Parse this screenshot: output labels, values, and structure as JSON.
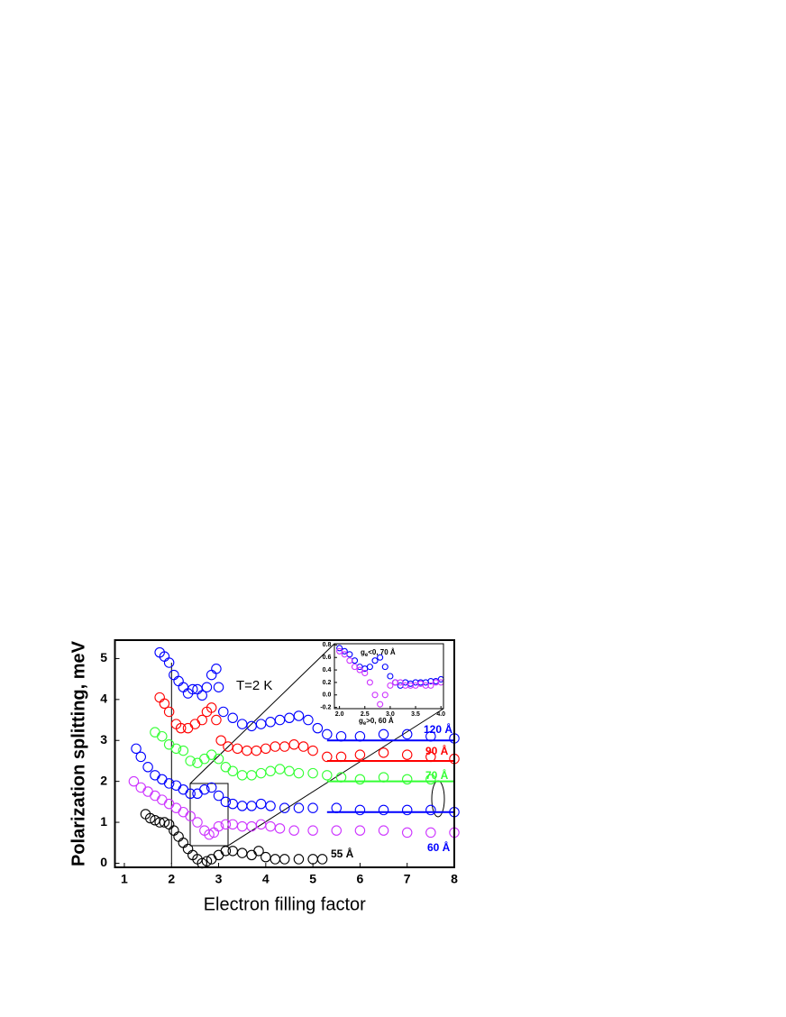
{
  "chart_data": [
    {
      "type": "scatter",
      "x_label": "Electron filling factor",
      "y_label": "Polarization splitting, meV",
      "xlim": [
        0.8,
        8
      ],
      "ylim": [
        -0.1,
        5.45
      ],
      "xticks": [
        1,
        2,
        3,
        4,
        5,
        6,
        7,
        8
      ],
      "yticks": [
        0,
        1,
        2,
        3,
        4,
        5
      ],
      "series": [
        {
          "color": "#0000ff",
          "x": [
            1.75,
            1.85,
            1.95,
            2.05,
            2.15,
            2.25,
            2.35,
            2.45,
            2.55,
            2.65,
            2.75,
            2.85,
            2.95,
            3.0,
            3.1,
            3.3,
            3.5,
            3.7,
            3.9,
            4.1,
            4.3,
            4.5,
            4.7,
            4.9,
            5.1,
            5.3,
            5.6,
            6.0,
            6.5,
            7.0,
            7.5,
            8.0
          ],
          "values": [
            5.15,
            5.05,
            4.9,
            4.6,
            4.45,
            4.3,
            4.15,
            4.25,
            4.25,
            4.1,
            4.3,
            4.6,
            4.75,
            4.3,
            3.7,
            3.55,
            3.4,
            3.35,
            3.4,
            3.45,
            3.5,
            3.55,
            3.6,
            3.5,
            3.3,
            3.15,
            3.1,
            3.1,
            3.15,
            3.15,
            3.1,
            3.05
          ]
        },
        {
          "color": "#ff0000",
          "x": [
            1.75,
            1.85,
            1.95,
            2.1,
            2.2,
            2.35,
            2.5,
            2.65,
            2.75,
            2.85,
            2.95,
            3.05,
            3.2,
            3.4,
            3.6,
            3.8,
            4.0,
            4.2,
            4.4,
            4.6,
            4.8,
            5.0,
            5.3,
            5.6,
            6.0,
            6.5,
            7.0,
            7.5,
            8.0
          ],
          "values": [
            4.05,
            3.9,
            3.7,
            3.4,
            3.3,
            3.3,
            3.4,
            3.5,
            3.7,
            3.8,
            3.5,
            3.0,
            2.85,
            2.8,
            2.75,
            2.75,
            2.8,
            2.85,
            2.85,
            2.9,
            2.85,
            2.75,
            2.6,
            2.6,
            2.65,
            2.7,
            2.65,
            2.6,
            2.55
          ]
        },
        {
          "color": "#33ff33",
          "x": [
            1.65,
            1.8,
            1.95,
            2.1,
            2.25,
            2.4,
            2.55,
            2.7,
            2.85,
            3.0,
            3.15,
            3.3,
            3.5,
            3.7,
            3.9,
            4.1,
            4.3,
            4.5,
            4.7,
            5.0,
            5.3,
            5.6,
            6.0,
            6.5,
            7.0,
            7.5
          ],
          "values": [
            3.2,
            3.1,
            2.9,
            2.8,
            2.75,
            2.5,
            2.45,
            2.55,
            2.65,
            2.55,
            2.35,
            2.25,
            2.15,
            2.15,
            2.2,
            2.25,
            2.3,
            2.25,
            2.2,
            2.2,
            2.15,
            2.1,
            2.05,
            2.1,
            2.05,
            2.05
          ]
        },
        {
          "color": "#0000ff",
          "x": [
            1.25,
            1.35,
            1.5,
            1.65,
            1.8,
            1.95,
            2.1,
            2.25,
            2.4,
            2.55,
            2.7,
            2.85,
            3.0,
            3.15,
            3.3,
            3.5,
            3.7,
            3.9,
            4.1,
            4.4,
            4.7,
            5.0,
            5.5,
            6.0,
            6.5,
            7.0,
            7.5,
            8.0
          ],
          "values": [
            2.8,
            2.6,
            2.35,
            2.15,
            2.05,
            1.95,
            1.9,
            1.8,
            1.7,
            1.7,
            1.8,
            1.85,
            1.65,
            1.5,
            1.45,
            1.4,
            1.4,
            1.45,
            1.4,
            1.35,
            1.35,
            1.35,
            1.35,
            1.3,
            1.3,
            1.3,
            1.3,
            1.25
          ]
        },
        {
          "color": "#cc33ff",
          "x": [
            1.2,
            1.35,
            1.5,
            1.65,
            1.8,
            1.95,
            2.1,
            2.25,
            2.4,
            2.55,
            2.7,
            2.8,
            2.9,
            3.0,
            3.15,
            3.3,
            3.5,
            3.7,
            3.9,
            4.1,
            4.3,
            4.6,
            5.0,
            5.5,
            6.0,
            6.5,
            7.0,
            7.5,
            8.0
          ],
          "values": [
            2.0,
            1.85,
            1.75,
            1.65,
            1.55,
            1.45,
            1.35,
            1.25,
            1.15,
            1.0,
            0.8,
            0.7,
            0.75,
            0.9,
            0.95,
            0.95,
            0.9,
            0.9,
            0.95,
            0.9,
            0.85,
            0.8,
            0.8,
            0.8,
            0.8,
            0.8,
            0.75,
            0.75,
            0.75
          ]
        },
        {
          "color": "#000000",
          "x": [
            1.45,
            1.55,
            1.65,
            1.75,
            1.85,
            1.95,
            2.05,
            2.15,
            2.25,
            2.35,
            2.45,
            2.55,
            2.65,
            2.75,
            2.85,
            3.0,
            3.15,
            3.3,
            3.5,
            3.7,
            3.85,
            4.0,
            4.2,
            4.4,
            4.7,
            5.0,
            5.2
          ],
          "values": [
            1.2,
            1.1,
            1.05,
            1.0,
            1.0,
            0.95,
            0.8,
            0.65,
            0.5,
            0.35,
            0.2,
            0.1,
            0.0,
            0.05,
            0.1,
            0.2,
            0.3,
            0.3,
            0.25,
            0.2,
            0.3,
            0.15,
            0.1,
            0.1,
            0.1,
            0.1,
            0.1
          ]
        }
      ],
      "reference_lines": [
        {
          "y": 3.0,
          "x": [
            5.3,
            8
          ],
          "color": "#0000ff"
        },
        {
          "y": 2.5,
          "x": [
            5.3,
            8
          ],
          "color": "#ff0000"
        },
        {
          "y": 2.0,
          "x": [
            5.3,
            8
          ],
          "color": "#33ff33"
        },
        {
          "y": 1.25,
          "x": [
            5.3,
            8
          ],
          "color": "#0000ff"
        }
      ],
      "annotations": [
        {
          "text": "T=2 K",
          "color": "#000000"
        },
        {
          "text": "120 Å",
          "color": "#0000ff"
        },
        {
          "text": "90 Å",
          "color": "#ff0000"
        },
        {
          "text": "70 Å",
          "color": "#33ff33"
        },
        {
          "text": "60 Å",
          "color": "#0000ff"
        },
        {
          "text": "55 Å",
          "color": "#000000"
        }
      ]
    },
    {
      "type": "scatter",
      "xlim": [
        1.9,
        4.05
      ],
      "ylim": [
        -0.22,
        0.82
      ],
      "xticks": [
        {
          "value": 2,
          "label": "2.0"
        },
        2.5,
        {
          "value": 3,
          "label": "3.0"
        },
        3.5,
        {
          "value": 4,
          "label": "4.0"
        }
      ],
      "yticks": [
        -0.2,
        {
          "value": 0,
          "label": "0.0"
        },
        0.2,
        0.4,
        0.6,
        0.8
      ],
      "series": [
        {
          "color": "#0000ff",
          "x": [
            2.0,
            2.1,
            2.2,
            2.3,
            2.4,
            2.5,
            2.6,
            2.7,
            2.8,
            2.9,
            3.0,
            3.1,
            3.2,
            3.3,
            3.4,
            3.5,
            3.6,
            3.7,
            3.8,
            3.9,
            4.0
          ],
          "values": [
            0.75,
            0.7,
            0.65,
            0.55,
            0.45,
            0.42,
            0.45,
            0.55,
            0.6,
            0.45,
            0.3,
            0.2,
            0.15,
            0.2,
            0.18,
            0.2,
            0.2,
            0.2,
            0.22,
            0.22,
            0.25
          ]
        },
        {
          "color": "#cc33ff",
          "x": [
            2.0,
            2.1,
            2.2,
            2.3,
            2.4,
            2.5,
            2.6,
            2.7,
            2.8,
            2.9,
            3.0,
            3.1,
            3.2,
            3.3,
            3.4,
            3.5,
            3.6,
            3.7,
            3.8,
            3.9,
            4.0
          ],
          "values": [
            0.7,
            0.65,
            0.55,
            0.45,
            0.4,
            0.35,
            0.2,
            0.0,
            -0.15,
            0.0,
            0.15,
            0.2,
            0.2,
            0.15,
            0.15,
            0.15,
            0.18,
            0.15,
            0.15,
            0.2,
            0.2
          ]
        }
      ],
      "annotations": [
        {
          "text": "g",
          "sub": "e",
          "rest": "<0, 70 Å",
          "color": "#000000"
        },
        {
          "text": "g",
          "sub": "e",
          "rest": ">0, 60 Å",
          "color": "#000000"
        }
      ]
    }
  ]
}
